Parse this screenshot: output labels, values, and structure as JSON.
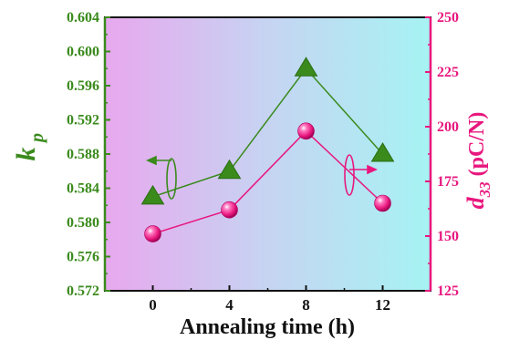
{
  "chart_data": {
    "type": "line",
    "x": [
      0,
      4,
      8,
      12
    ],
    "xticks": [
      "0",
      "4",
      "8",
      "12"
    ],
    "xlabel": "Annealing time (h)",
    "xlim": [
      -2.5,
      14.5
    ],
    "series": [
      {
        "name": "k_p",
        "axis": "left",
        "marker": "triangle",
        "color": "#3a8a1c",
        "values": [
          0.583,
          0.586,
          0.598,
          0.588
        ]
      },
      {
        "name": "d33",
        "axis": "right",
        "marker": "sphere",
        "color": "#e8177e",
        "values": [
          151,
          162,
          198,
          165
        ]
      }
    ],
    "y_left": {
      "label_main": "k",
      "label_sub": "p",
      "lim": [
        0.572,
        0.604
      ],
      "ticks": [
        "0.572",
        "0.576",
        "0.580",
        "0.584",
        "0.588",
        "0.592",
        "0.596",
        "0.600",
        "0.604"
      ],
      "tick_values": [
        0.572,
        0.576,
        0.58,
        0.584,
        0.588,
        0.592,
        0.596,
        0.6,
        0.604
      ],
      "color": "#3a8a1c"
    },
    "y_right": {
      "label_main": "d",
      "label_sub": "33",
      "label_unit": "(pC/N)",
      "lim": [
        125,
        250
      ],
      "ticks": [
        "125",
        "150",
        "175",
        "200",
        "225",
        "250"
      ],
      "tick_values": [
        125,
        150,
        175,
        200,
        225,
        250
      ],
      "color": "#e8177e"
    },
    "background": {
      "gradient": [
        "#e8a8ee",
        "#c8d6f2",
        "#a6f3f3"
      ]
    },
    "grid": false
  }
}
